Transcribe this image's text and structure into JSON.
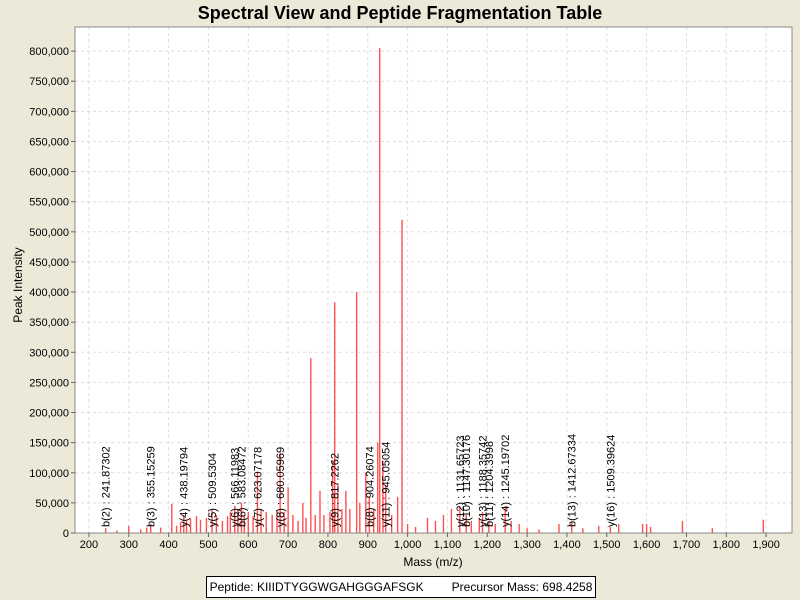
{
  "chart_data": {
    "type": "bar",
    "title": "Spectral View and Peptide Fragmentation Table",
    "xlabel": "Mass (m/z)",
    "ylabel": "Peak Intensity",
    "xlim": [
      165,
      1965
    ],
    "ylim": [
      0,
      840000
    ],
    "x_ticks": [
      "200",
      "300",
      "400",
      "500",
      "600",
      "700",
      "800",
      "900",
      "1,000",
      "1,100",
      "1,200",
      "1,300",
      "1,400",
      "1,500",
      "1,600",
      "1,700",
      "1,800",
      "1,900"
    ],
    "x_tick_values": [
      200,
      300,
      400,
      500,
      600,
      700,
      800,
      900,
      1000,
      1100,
      1200,
      1300,
      1400,
      1500,
      1600,
      1700,
      1800,
      1900
    ],
    "y_ticks": [
      "0",
      "50,000",
      "100,000",
      "150,000",
      "200,000",
      "250,000",
      "300,000",
      "350,000",
      "400,000",
      "450,000",
      "500,000",
      "550,000",
      "600,000",
      "650,000",
      "700,000",
      "750,000",
      "800,000"
    ],
    "y_tick_values": [
      0,
      50000,
      100000,
      150000,
      200000,
      250000,
      300000,
      350000,
      400000,
      450000,
      500000,
      550000,
      600000,
      650000,
      700000,
      750000,
      800000
    ],
    "grid": true,
    "peak_color": "#ff5050",
    "peaks": [
      {
        "mz": 242,
        "intensity": 8000
      },
      {
        "mz": 270,
        "intensity": 4000
      },
      {
        "mz": 300,
        "intensity": 12000
      },
      {
        "mz": 330,
        "intensity": 6000
      },
      {
        "mz": 345,
        "intensity": 9000
      },
      {
        "mz": 355,
        "intensity": 15000
      },
      {
        "mz": 380,
        "intensity": 9000
      },
      {
        "mz": 408,
        "intensity": 48000
      },
      {
        "mz": 420,
        "intensity": 12000
      },
      {
        "mz": 430,
        "intensity": 18000
      },
      {
        "mz": 438,
        "intensity": 30000
      },
      {
        "mz": 445,
        "intensity": 20000
      },
      {
        "mz": 455,
        "intensity": 25000
      },
      {
        "mz": 470,
        "intensity": 28000
      },
      {
        "mz": 480,
        "intensity": 22000
      },
      {
        "mz": 495,
        "intensity": 25000
      },
      {
        "mz": 509,
        "intensity": 40000
      },
      {
        "mz": 520,
        "intensity": 30000
      },
      {
        "mz": 535,
        "intensity": 20000
      },
      {
        "mz": 548,
        "intensity": 28000
      },
      {
        "mz": 555,
        "intensity": 35000
      },
      {
        "mz": 566,
        "intensity": 45000
      },
      {
        "mz": 574,
        "intensity": 38000
      },
      {
        "mz": 583,
        "intensity": 50000
      },
      {
        "mz": 590,
        "intensity": 30000
      },
      {
        "mz": 600,
        "intensity": 35000
      },
      {
        "mz": 612,
        "intensity": 28000
      },
      {
        "mz": 623,
        "intensity": 102000
      },
      {
        "mz": 632,
        "intensity": 40000
      },
      {
        "mz": 645,
        "intensity": 35000
      },
      {
        "mz": 660,
        "intensity": 30000
      },
      {
        "mz": 672,
        "intensity": 38000
      },
      {
        "mz": 680,
        "intensity": 133000
      },
      {
        "mz": 690,
        "intensity": 35000
      },
      {
        "mz": 700,
        "intensity": 76000
      },
      {
        "mz": 712,
        "intensity": 30000
      },
      {
        "mz": 725,
        "intensity": 20000
      },
      {
        "mz": 737,
        "intensity": 50000
      },
      {
        "mz": 745,
        "intensity": 25000
      },
      {
        "mz": 757,
        "intensity": 290000
      },
      {
        "mz": 768,
        "intensity": 30000
      },
      {
        "mz": 780,
        "intensity": 70000
      },
      {
        "mz": 790,
        "intensity": 30000
      },
      {
        "mz": 805,
        "intensity": 35000
      },
      {
        "mz": 812,
        "intensity": 120000
      },
      {
        "mz": 817,
        "intensity": 383000
      },
      {
        "mz": 825,
        "intensity": 80000
      },
      {
        "mz": 835,
        "intensity": 40000
      },
      {
        "mz": 845,
        "intensity": 70000
      },
      {
        "mz": 855,
        "intensity": 40000
      },
      {
        "mz": 872,
        "intensity": 400000
      },
      {
        "mz": 880,
        "intensity": 50000
      },
      {
        "mz": 895,
        "intensity": 100000
      },
      {
        "mz": 904,
        "intensity": 60000
      },
      {
        "mz": 915,
        "intensity": 40000
      },
      {
        "mz": 925,
        "intensity": 150000
      },
      {
        "mz": 930,
        "intensity": 805000
      },
      {
        "mz": 938,
        "intensity": 120000
      },
      {
        "mz": 945,
        "intensity": 80000
      },
      {
        "mz": 960,
        "intensity": 30000
      },
      {
        "mz": 975,
        "intensity": 60000
      },
      {
        "mz": 986,
        "intensity": 520000
      },
      {
        "mz": 1000,
        "intensity": 15000
      },
      {
        "mz": 1020,
        "intensity": 10000
      },
      {
        "mz": 1050,
        "intensity": 25000
      },
      {
        "mz": 1070,
        "intensity": 20000
      },
      {
        "mz": 1090,
        "intensity": 30000
      },
      {
        "mz": 1110,
        "intensity": 40000
      },
      {
        "mz": 1131,
        "intensity": 45000
      },
      {
        "mz": 1147,
        "intensity": 30000
      },
      {
        "mz": 1160,
        "intensity": 20000
      },
      {
        "mz": 1180,
        "intensity": 25000
      },
      {
        "mz": 1188,
        "intensity": 35000
      },
      {
        "mz": 1204,
        "intensity": 20000
      },
      {
        "mz": 1220,
        "intensity": 15000
      },
      {
        "mz": 1245,
        "intensity": 45000
      },
      {
        "mz": 1260,
        "intensity": 20000
      },
      {
        "mz": 1280,
        "intensity": 15000
      },
      {
        "mz": 1300,
        "intensity": 8000
      },
      {
        "mz": 1330,
        "intensity": 6000
      },
      {
        "mz": 1380,
        "intensity": 15000
      },
      {
        "mz": 1412,
        "intensity": 18000
      },
      {
        "mz": 1440,
        "intensity": 8000
      },
      {
        "mz": 1480,
        "intensity": 12000
      },
      {
        "mz": 1509,
        "intensity": 10000
      },
      {
        "mz": 1530,
        "intensity": 15000
      },
      {
        "mz": 1590,
        "intensity": 15000
      },
      {
        "mz": 1600,
        "intensity": 15000
      },
      {
        "mz": 1610,
        "intensity": 10000
      },
      {
        "mz": 1690,
        "intensity": 20000
      },
      {
        "mz": 1765,
        "intensity": 8000
      },
      {
        "mz": 1893,
        "intensity": 22000
      }
    ],
    "fragment_labels": [
      {
        "text": "b(2) : 241.87302",
        "mz": 242
      },
      {
        "text": "b(3) : 355.15259",
        "mz": 355
      },
      {
        "text": "y(4) : 438.19794",
        "mz": 438
      },
      {
        "text": "y(5) : 509.5304",
        "mz": 509
      },
      {
        "text": "y(6) : 566.11983",
        "mz": 566
      },
      {
        "text": "b(6) : 583.08472",
        "mz": 583
      },
      {
        "text": "y(7) : 623.07178",
        "mz": 623
      },
      {
        "text": "y(8) : 680.05969",
        "mz": 680
      },
      {
        "text": "y(9) : 817.2262",
        "mz": 817
      },
      {
        "text": "b(8) : 904.26074",
        "mz": 904
      },
      {
        "text": "y(11) : 945.05054",
        "mz": 945
      },
      {
        "text": "y(12) : 1131.65723",
        "mz": 1131
      },
      {
        "text": "b(10) : 1147.30176",
        "mz": 1147
      },
      {
        "text": "y(13) : 1188.35742",
        "mz": 1188
      },
      {
        "text": "b(11) : 1204.3998",
        "mz": 1204
      },
      {
        "text": "y(14) : 1245.19702",
        "mz": 1245
      },
      {
        "text": "b(13) : 1412.67334",
        "mz": 1412
      },
      {
        "text": "y(16) : 1509.39624",
        "mz": 1509
      }
    ]
  },
  "caption": {
    "peptide": "Peptide: KIIIDTYGGWGAHGGGAFSGK",
    "precursor": "Precursor Mass: 698.4258"
  }
}
